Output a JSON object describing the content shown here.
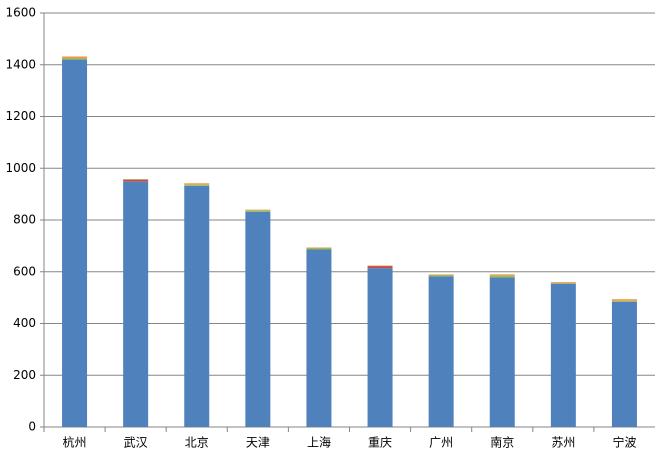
{
  "chart_data": {
    "type": "stacked_bar",
    "categories": [
      "杭州",
      "武汉",
      "北京",
      "天津",
      "上海",
      "重庆",
      "广州",
      "南京",
      "苏州",
      "宁波"
    ],
    "series": [
      {
        "color": "#4f81bd",
        "values": [
          1420,
          948,
          932,
          832,
          686,
          614,
          582,
          578,
          554,
          484
        ]
      },
      {
        "color": "#c0504d",
        "values": [
          0,
          8,
          0,
          0,
          0,
          8,
          0,
          0,
          0,
          0
        ]
      },
      {
        "color": "#9bbb59",
        "values": [
          6,
          2,
          6,
          6,
          6,
          0,
          6,
          8,
          2,
          4
        ]
      },
      {
        "color": "#f79646",
        "values": [
          6,
          0,
          4,
          2,
          2,
          2,
          2,
          4,
          4,
          6
        ]
      }
    ],
    "ylim": [
      0,
      1600
    ],
    "yticks": [
      0,
      200,
      400,
      600,
      800,
      1000,
      1200,
      1400,
      1600
    ],
    "grid": true
  }
}
